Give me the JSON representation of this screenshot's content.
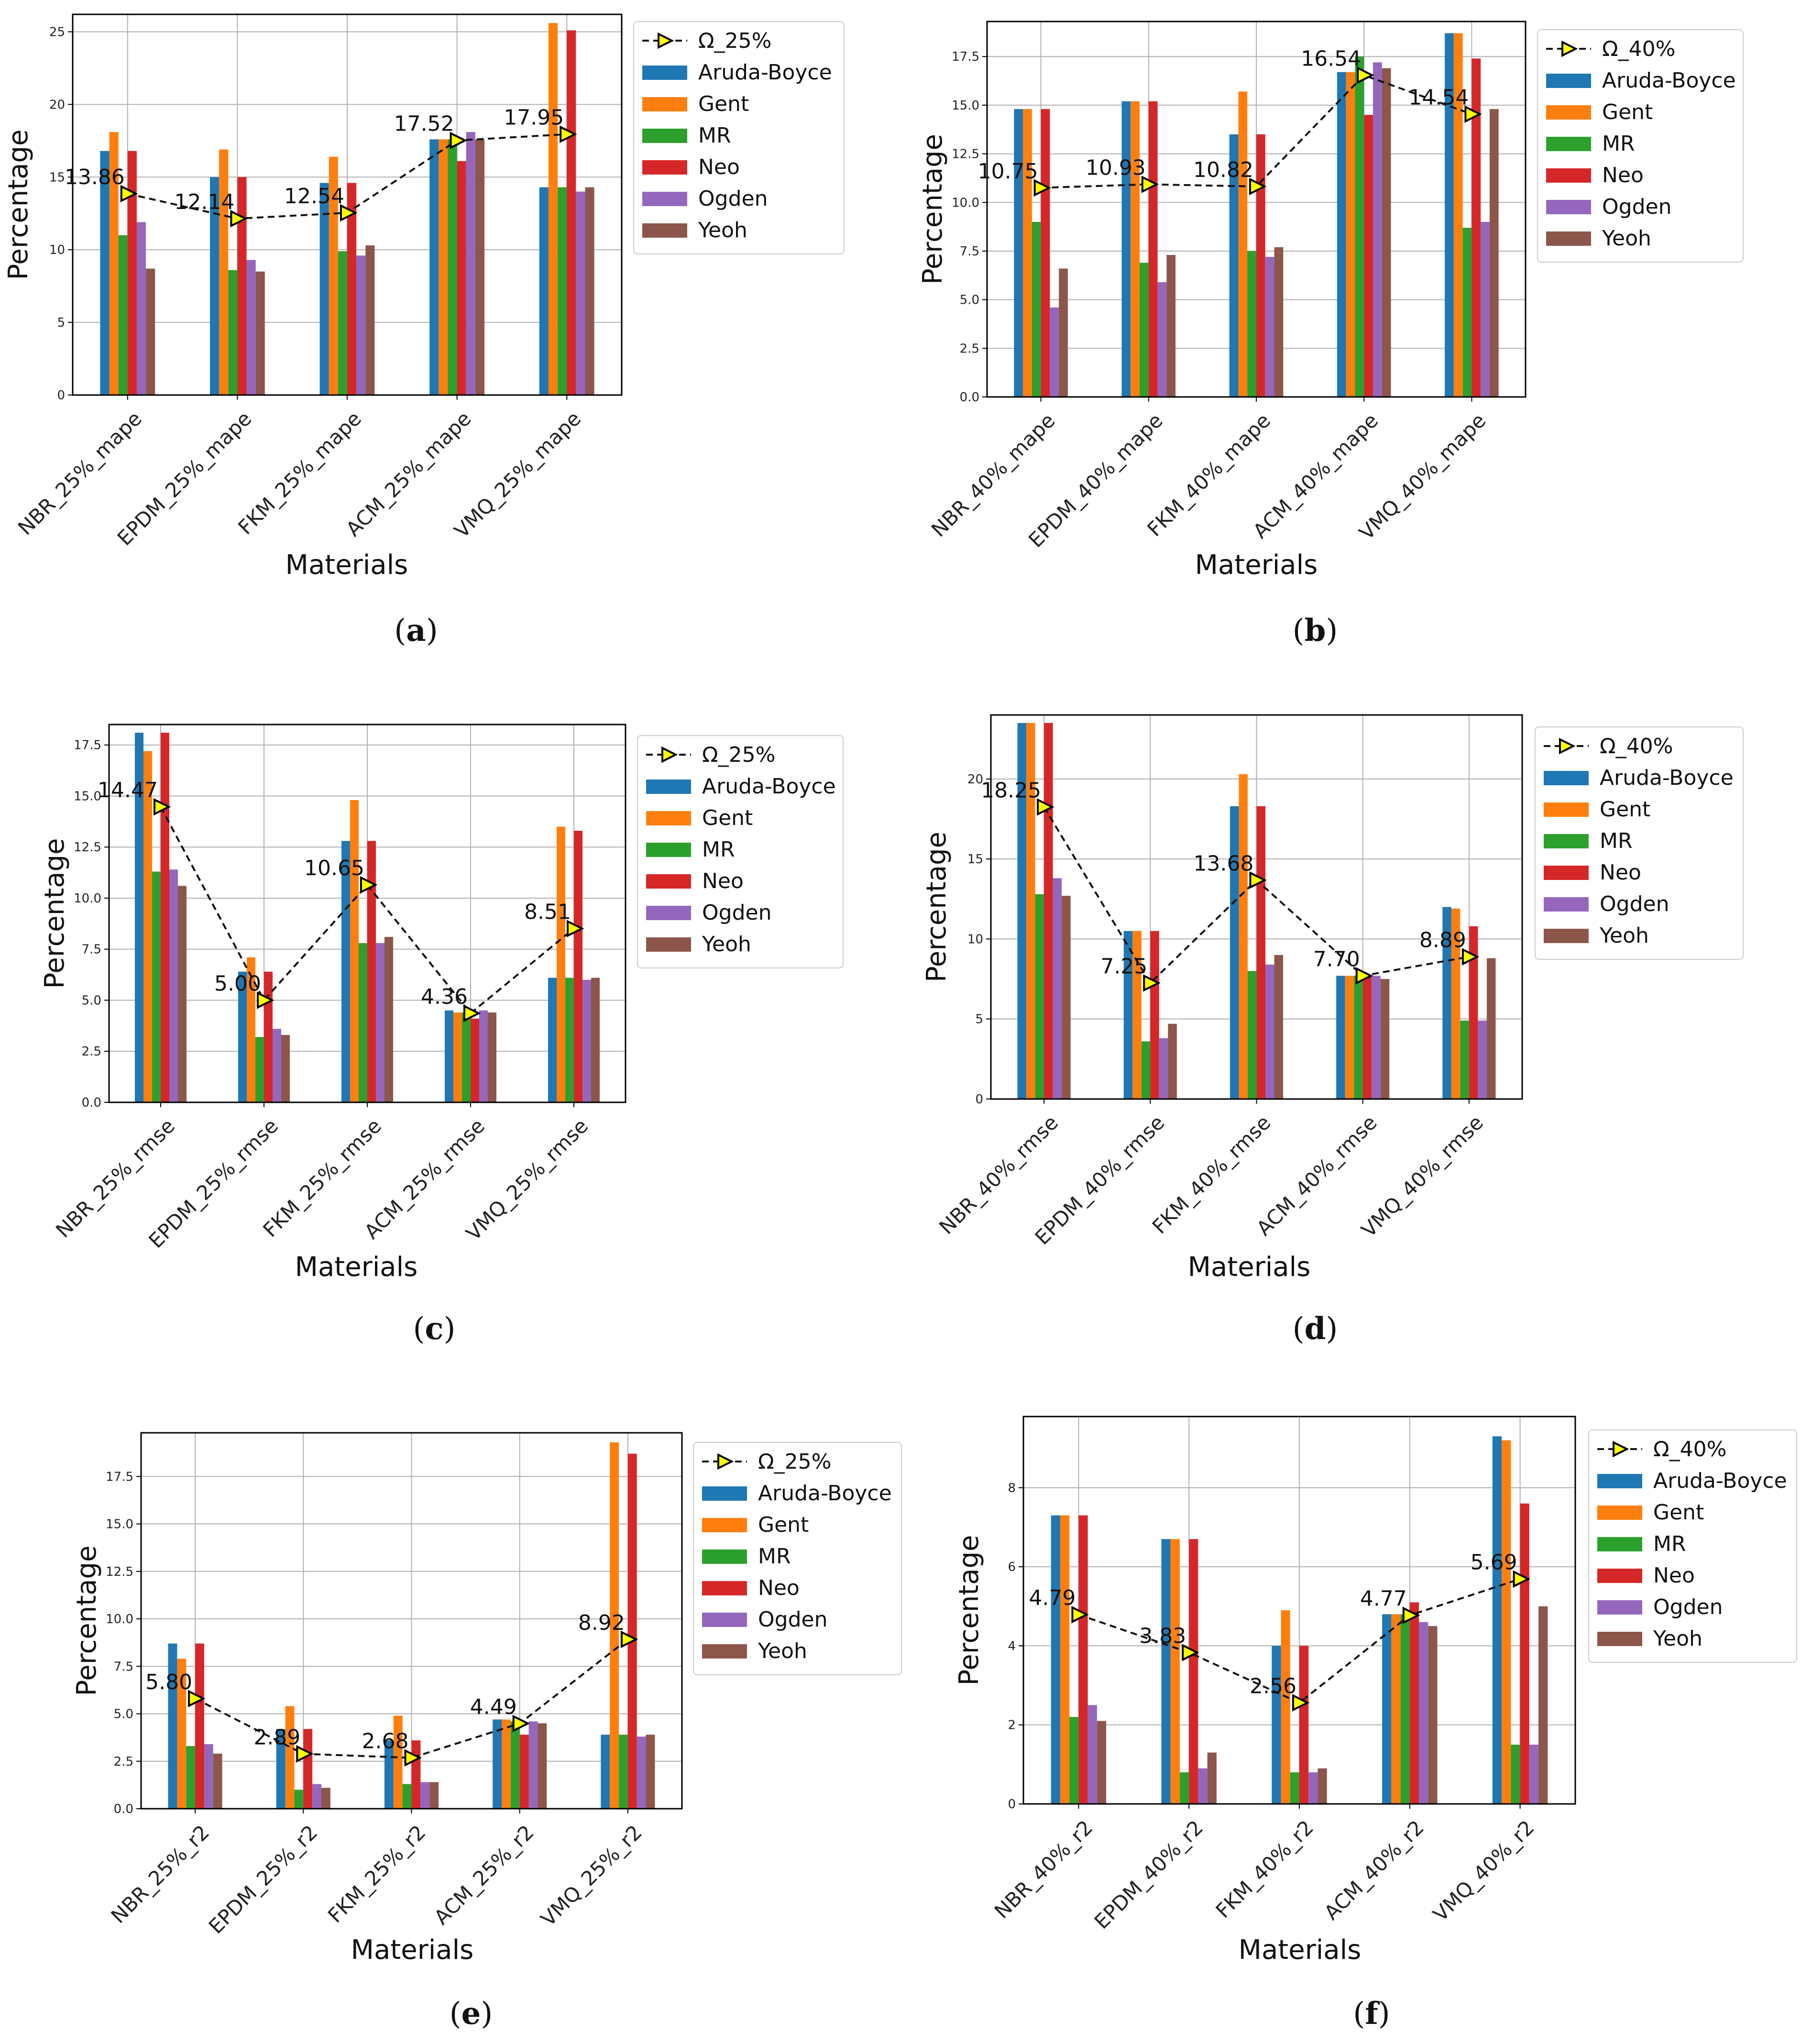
{
  "chart_data": [
    {
      "panel": "a",
      "type": "bar",
      "categories": [
        "NBR_25%_mape",
        "EPDM_25%_mape",
        "FKM_25%_mape",
        "ACM_25%_mape",
        "VMQ_25%_mape"
      ],
      "series": [
        {
          "name": "Aruda-Boyce",
          "color": "#1f77b4",
          "values": [
            16.8,
            15.0,
            14.6,
            17.6,
            14.3
          ]
        },
        {
          "name": "Gent",
          "color": "#ff7f0e",
          "values": [
            18.1,
            16.9,
            16.4,
            17.6,
            25.6
          ]
        },
        {
          "name": "MR",
          "color": "#2ca02c",
          "values": [
            11.0,
            8.6,
            9.9,
            17.6,
            14.3
          ]
        },
        {
          "name": "Neo",
          "color": "#d62728",
          "values": [
            16.8,
            15.0,
            14.6,
            16.1,
            25.1
          ]
        },
        {
          "name": "Ogden",
          "color": "#9467bd",
          "values": [
            11.9,
            9.3,
            9.6,
            18.1,
            14.0
          ]
        },
        {
          "name": "Yeoh",
          "color": "#8c564b",
          "values": [
            8.7,
            8.5,
            10.3,
            17.6,
            14.3
          ]
        }
      ],
      "omega": {
        "name": "Ω_25%",
        "values": [
          13.86,
          12.14,
          12.54,
          17.52,
          17.95
        ],
        "labels": [
          "13.86",
          "12.14",
          "12.54",
          "17.52",
          "17.95"
        ]
      },
      "ylim": [
        0,
        26.2
      ],
      "yticks": [
        0,
        5,
        10,
        15,
        20,
        25
      ],
      "ytick_labels": [
        "0",
        "5",
        "10",
        "15",
        "20",
        "25"
      ],
      "xlabel": "Materials",
      "ylabel": "Percentage",
      "subcaption": "(a)"
    },
    {
      "panel": "b",
      "type": "bar",
      "categories": [
        "NBR_40%_mape",
        "EPDM_40%_mape",
        "FKM_40%_mape",
        "ACM_40%_mape",
        "VMQ_40%_mape"
      ],
      "series": [
        {
          "name": "Aruda-Boyce",
          "color": "#1f77b4",
          "values": [
            14.8,
            15.2,
            13.5,
            16.7,
            18.7
          ]
        },
        {
          "name": "Gent",
          "color": "#ff7f0e",
          "values": [
            14.8,
            15.2,
            15.7,
            16.7,
            18.7
          ]
        },
        {
          "name": "MR",
          "color": "#2ca02c",
          "values": [
            9.0,
            6.9,
            7.5,
            17.5,
            8.7
          ]
        },
        {
          "name": "Neo",
          "color": "#d62728",
          "values": [
            14.8,
            15.2,
            13.5,
            14.5,
            17.4
          ]
        },
        {
          "name": "Ogden",
          "color": "#9467bd",
          "values": [
            4.6,
            5.9,
            7.2,
            17.2,
            9.0
          ]
        },
        {
          "name": "Yeoh",
          "color": "#8c564b",
          "values": [
            6.6,
            7.3,
            7.7,
            16.9,
            14.8
          ]
        }
      ],
      "omega": {
        "name": "Ω_40%",
        "values": [
          10.75,
          10.93,
          10.82,
          16.54,
          14.54
        ],
        "labels": [
          "10.75",
          "10.93",
          "10.82",
          "16.54",
          "14.54"
        ]
      },
      "ylim": [
        0,
        19.3
      ],
      "yticks": [
        0,
        2.5,
        5,
        7.5,
        10,
        12.5,
        15,
        17.5
      ],
      "ytick_labels": [
        "0.0",
        "2.5",
        "5.0",
        "7.5",
        "10.0",
        "12.5",
        "15.0",
        "17.5"
      ],
      "xlabel": "Materials",
      "ylabel": "Percentage",
      "subcaption": "(b)"
    },
    {
      "panel": "c",
      "type": "bar",
      "categories": [
        "NBR_25%_rmse",
        "EPDM_25%_rmse",
        "FKM_25%_rmse",
        "ACM_25%_rmse",
        "VMQ_25%_rmse"
      ],
      "series": [
        {
          "name": "Aruda-Boyce",
          "color": "#1f77b4",
          "values": [
            18.1,
            6.4,
            12.8,
            4.5,
            6.1
          ]
        },
        {
          "name": "Gent",
          "color": "#ff7f0e",
          "values": [
            17.2,
            7.1,
            14.8,
            4.4,
            13.5
          ]
        },
        {
          "name": "MR",
          "color": "#2ca02c",
          "values": [
            11.3,
            3.2,
            7.8,
            4.4,
            6.1
          ]
        },
        {
          "name": "Neo",
          "color": "#d62728",
          "values": [
            18.1,
            6.4,
            12.8,
            4.1,
            13.3
          ]
        },
        {
          "name": "Ogden",
          "color": "#9467bd",
          "values": [
            11.4,
            3.6,
            7.8,
            4.5,
            6.0
          ]
        },
        {
          "name": "Yeoh",
          "color": "#8c564b",
          "values": [
            10.6,
            3.3,
            8.1,
            4.4,
            6.1
          ]
        }
      ],
      "omega": {
        "name": "Ω_25%",
        "values": [
          14.47,
          5.0,
          10.65,
          4.36,
          8.51
        ],
        "labels": [
          "14.47",
          "5.00",
          "10.65",
          "4.36",
          "8.51"
        ]
      },
      "ylim": [
        0,
        18.5
      ],
      "yticks": [
        0,
        2.5,
        5,
        7.5,
        10,
        12.5,
        15,
        17.5
      ],
      "ytick_labels": [
        "0.0",
        "2.5",
        "5.0",
        "7.5",
        "10.0",
        "12.5",
        "15.0",
        "17.5"
      ],
      "xlabel": "Materials",
      "ylabel": "Percentage",
      "subcaption": "(c)"
    },
    {
      "panel": "d",
      "type": "bar",
      "categories": [
        "NBR_40%_rmse",
        "EPDM_40%_rmse",
        "FKM_40%_rmse",
        "ACM_40%_rmse",
        "VMQ_40%_rmse"
      ],
      "series": [
        {
          "name": "Aruda-Boyce",
          "color": "#1f77b4",
          "values": [
            23.5,
            10.5,
            18.3,
            7.7,
            12.0
          ]
        },
        {
          "name": "Gent",
          "color": "#ff7f0e",
          "values": [
            23.5,
            10.5,
            20.3,
            7.7,
            11.9
          ]
        },
        {
          "name": "MR",
          "color": "#2ca02c",
          "values": [
            12.8,
            3.6,
            8.0,
            7.7,
            4.9
          ]
        },
        {
          "name": "Neo",
          "color": "#d62728",
          "values": [
            23.5,
            10.5,
            18.3,
            7.7,
            10.8
          ]
        },
        {
          "name": "Ogden",
          "color": "#9467bd",
          "values": [
            13.8,
            3.8,
            8.4,
            7.7,
            4.9
          ]
        },
        {
          "name": "Yeoh",
          "color": "#8c564b",
          "values": [
            12.7,
            4.7,
            9.0,
            7.5,
            8.8
          ]
        }
      ],
      "omega": {
        "name": "Ω_40%",
        "values": [
          18.25,
          7.25,
          13.68,
          7.7,
          8.89
        ],
        "labels": [
          "18.25",
          "7.25",
          "13.68",
          "7.70",
          "8.89"
        ]
      },
      "ylim": [
        0,
        24
      ],
      "yticks": [
        0,
        5,
        10,
        15,
        20
      ],
      "ytick_labels": [
        "0",
        "5",
        "10",
        "15",
        "20"
      ],
      "xlabel": "Materials",
      "ylabel": "Percentage",
      "subcaption": "(d)"
    },
    {
      "panel": "e",
      "type": "bar",
      "categories": [
        "NBR_25%_r2",
        "EPDM_25%_r2",
        "FKM_25%_r2",
        "ACM_25%_r2",
        "VMQ_25%_r2"
      ],
      "series": [
        {
          "name": "Aruda-Boyce",
          "color": "#1f77b4",
          "values": [
            8.7,
            4.2,
            3.6,
            4.7,
            3.9
          ]
        },
        {
          "name": "Gent",
          "color": "#ff7f0e",
          "values": [
            7.9,
            5.4,
            4.9,
            4.7,
            19.3
          ]
        },
        {
          "name": "MR",
          "color": "#2ca02c",
          "values": [
            3.3,
            1.0,
            1.3,
            4.6,
            3.9
          ]
        },
        {
          "name": "Neo",
          "color": "#d62728",
          "values": [
            8.7,
            4.2,
            3.6,
            3.9,
            18.7
          ]
        },
        {
          "name": "Ogden",
          "color": "#9467bd",
          "values": [
            3.4,
            1.3,
            1.4,
            4.6,
            3.8
          ]
        },
        {
          "name": "Yeoh",
          "color": "#8c564b",
          "values": [
            2.9,
            1.1,
            1.4,
            4.5,
            3.9
          ]
        }
      ],
      "omega": {
        "name": "Ω_25%",
        "values": [
          5.8,
          2.89,
          2.68,
          4.49,
          8.92
        ],
        "labels": [
          "5.80",
          "2.89",
          "2.68",
          "4.49",
          "8.92"
        ]
      },
      "ylim": [
        0,
        19.8
      ],
      "yticks": [
        0,
        2.5,
        5,
        7.5,
        10,
        12.5,
        15,
        17.5
      ],
      "ytick_labels": [
        "0.0",
        "2.5",
        "5.0",
        "7.5",
        "10.0",
        "12.5",
        "15.0",
        "17.5"
      ],
      "xlabel": "Materials",
      "ylabel": "Percentage",
      "subcaption": "(e)"
    },
    {
      "panel": "f",
      "type": "bar",
      "categories": [
        "NBR_40%_r2",
        "EPDM_40%_r2",
        "FKM_40%_r2",
        "ACM_40%_r2",
        "VMQ_40%_r2"
      ],
      "series": [
        {
          "name": "Aruda-Boyce",
          "color": "#1f77b4",
          "values": [
            7.3,
            6.7,
            4.0,
            4.8,
            9.3
          ]
        },
        {
          "name": "Gent",
          "color": "#ff7f0e",
          "values": [
            7.3,
            6.7,
            4.9,
            4.8,
            9.2
          ]
        },
        {
          "name": "MR",
          "color": "#2ca02c",
          "values": [
            2.2,
            0.8,
            0.8,
            4.8,
            1.5
          ]
        },
        {
          "name": "Neo",
          "color": "#d62728",
          "values": [
            7.3,
            6.7,
            4.0,
            5.1,
            7.6
          ]
        },
        {
          "name": "Ogden",
          "color": "#9467bd",
          "values": [
            2.5,
            0.9,
            0.8,
            4.6,
            1.5
          ]
        },
        {
          "name": "Yeoh",
          "color": "#8c564b",
          "values": [
            2.1,
            1.3,
            0.9,
            4.5,
            5.0
          ]
        }
      ],
      "omega": {
        "name": "Ω_40%",
        "values": [
          4.79,
          3.83,
          2.56,
          4.77,
          5.69
        ],
        "labels": [
          "4.79",
          "3.83",
          "2.56",
          "4.77",
          "5.69"
        ]
      },
      "ylim": [
        0,
        9.8
      ],
      "yticks": [
        0,
        2,
        4,
        6,
        8
      ],
      "ytick_labels": [
        "0",
        "2",
        "4",
        "6",
        "8"
      ],
      "xlabel": "Materials",
      "ylabel": "Percentage",
      "subcaption": "(f)"
    }
  ]
}
